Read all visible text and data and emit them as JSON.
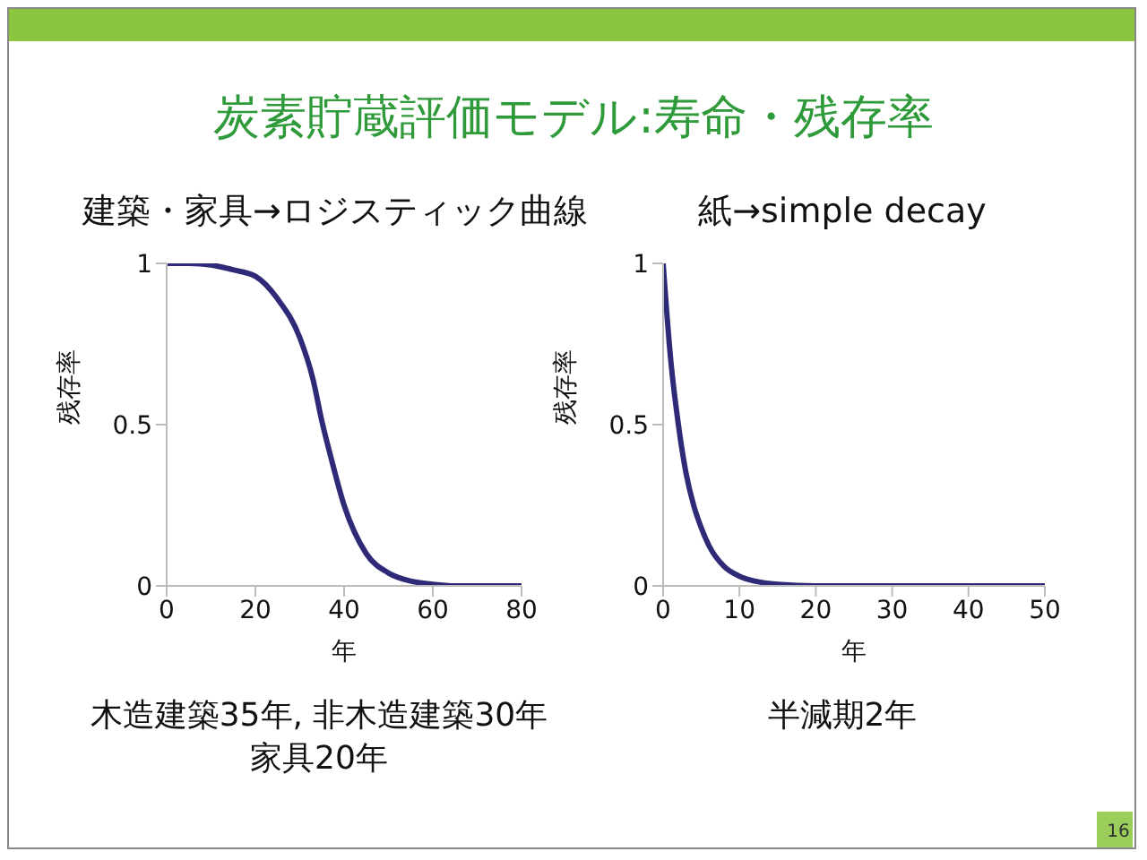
{
  "chart_data": [
    {
      "type": "line",
      "title": "炭素貯蔵評価モデル:寿命・残存率",
      "subtitle": "建築・家具→ロジスティック曲線",
      "xlabel": "年",
      "ylabel": "残存率",
      "x": [
        0,
        5,
        10,
        15,
        20,
        25,
        30,
        33,
        35,
        37,
        40,
        45,
        50,
        55,
        60,
        65,
        70,
        80
      ],
      "series": [
        {
          "color": "#2e2a78",
          "values": [
            1,
            1,
            0.995,
            0.98,
            0.96,
            0.89,
            0.77,
            0.64,
            0.51,
            0.4,
            0.25,
            0.1,
            0.04,
            0.015,
            0.005,
            0,
            0,
            0
          ]
        }
      ],
      "xlim": [
        0,
        80
      ],
      "xticks": [
        0,
        20,
        40,
        60,
        80
      ],
      "ylim": [
        0,
        1
      ],
      "yticks": [
        0,
        0.5,
        1
      ],
      "annotations": [
        "木造建築35年, 非木造建築30年",
        "家具20年"
      ]
    },
    {
      "type": "line",
      "subtitle": "紙→simple decay",
      "xlabel": "年",
      "ylabel": "残存率",
      "x": [
        0,
        1,
        2,
        3,
        4,
        5,
        6,
        8,
        10,
        12,
        15,
        20,
        30,
        40,
        50
      ],
      "series": [
        {
          "color": "#2e2a78",
          "values": [
            1,
            0.7,
            0.5,
            0.35,
            0.25,
            0.18,
            0.125,
            0.06,
            0.03,
            0.015,
            0.005,
            0,
            0,
            0,
            0
          ]
        }
      ],
      "xlim": [
        0,
        50
      ],
      "xticks": [
        0,
        10,
        20,
        30,
        40,
        50
      ],
      "ylim": [
        0,
        1
      ],
      "yticks": [
        0,
        0.5,
        1
      ],
      "annotations": [
        "半減期2年",
        "16"
      ]
    }
  ]
}
